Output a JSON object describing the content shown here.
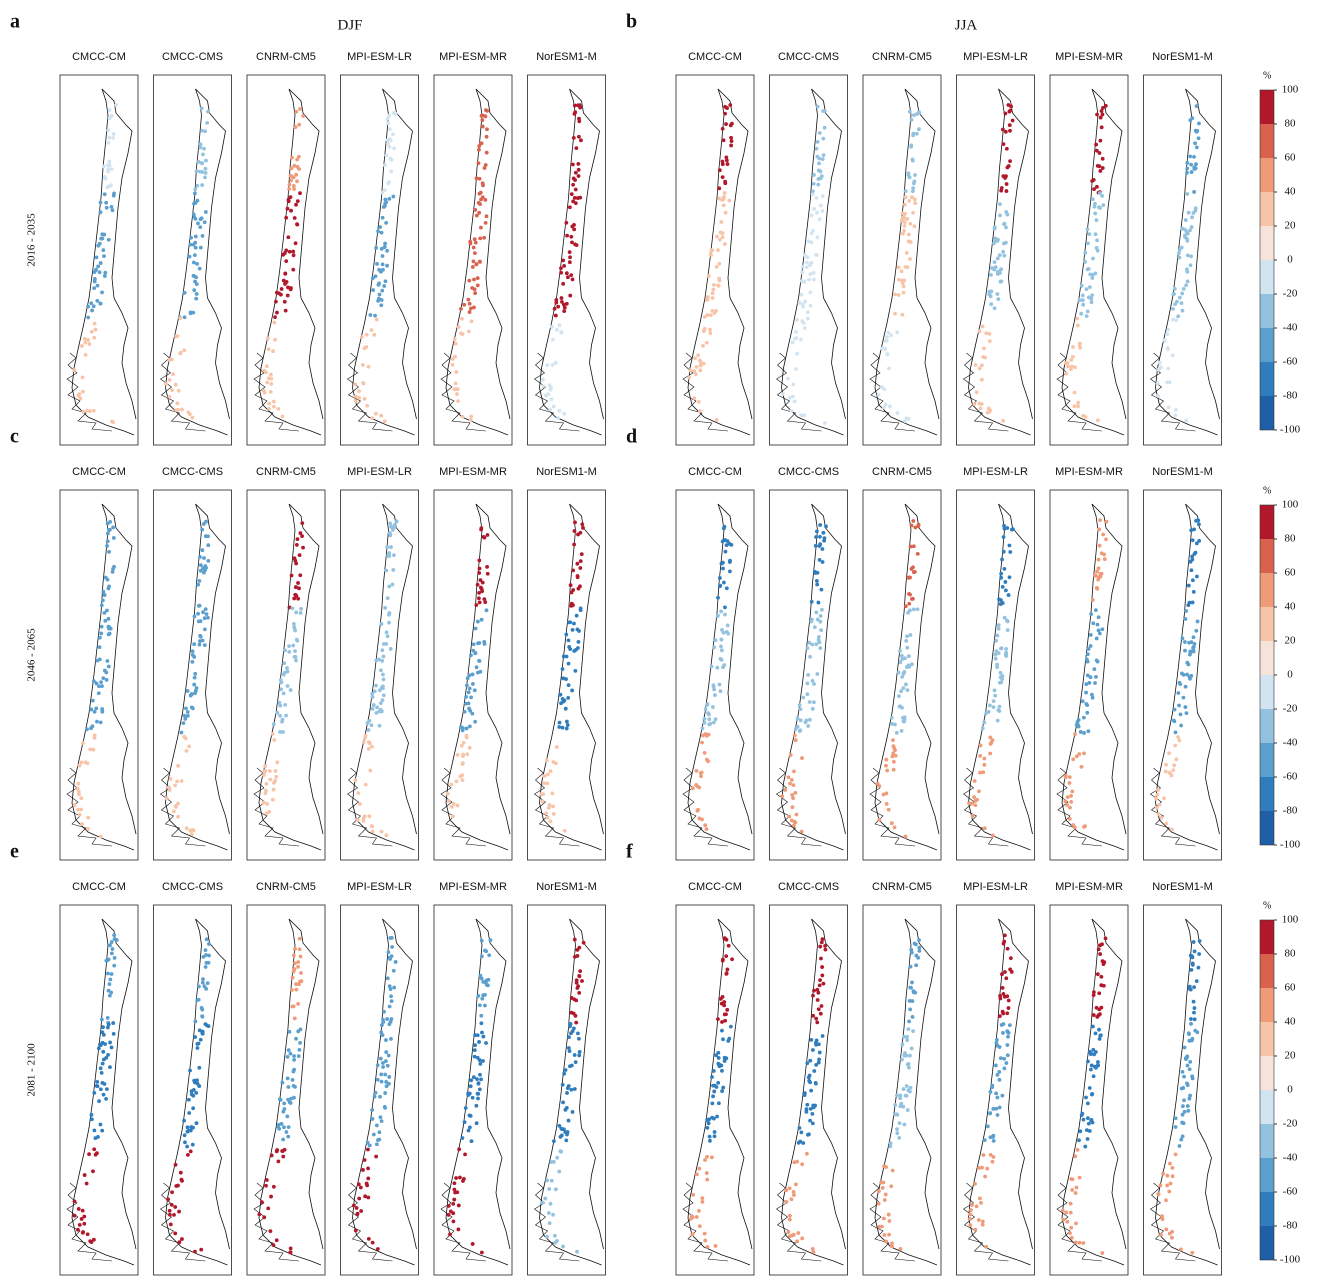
{
  "chart_data": {
    "type": "station-maps",
    "seasons": [
      "DJF",
      "JJA"
    ],
    "periods": [
      "2016 - 2035",
      "2046 - 2065",
      "2081 - 2100"
    ],
    "colorbar": {
      "label": "%",
      "ticks": [
        -100,
        -80,
        -60,
        -40,
        -20,
        0,
        20,
        40,
        60,
        80,
        100
      ],
      "colors": [
        "#1f5fa8",
        "#2f7dbd",
        "#5b9fcf",
        "#93c2e0",
        "#d3e4f1",
        "#f7e3da",
        "#f8c4a8",
        "#ef9a78",
        "#d9624f",
        "#b2182b"
      ]
    },
    "panels": [
      {
        "letter": "a",
        "models": [
          {
            "name": "CMCC-CM",
            "values": [
              -20,
              -60,
              20
            ]
          },
          {
            "name": "CMCC-CMS",
            "values": [
              -40,
              -60,
              20
            ]
          },
          {
            "name": "CNRM-CM5",
            "values": [
              40,
              80,
              20
            ]
          },
          {
            "name": "MPI-ESM-LR",
            "values": [
              -20,
              -60,
              20
            ]
          },
          {
            "name": "MPI-ESM-MR",
            "values": [
              60,
              60,
              20
            ]
          },
          {
            "name": "NorESM1-M",
            "values": [
              80,
              80,
              -20
            ]
          }
        ]
      },
      {
        "letter": "b",
        "models": [
          {
            "name": "CMCC-CM",
            "values": [
              80,
              20,
              20
            ]
          },
          {
            "name": "CMCC-CMS",
            "values": [
              -40,
              -20,
              -20
            ]
          },
          {
            "name": "CNRM-CM5",
            "values": [
              -40,
              20,
              -20
            ]
          },
          {
            "name": "MPI-ESM-LR",
            "values": [
              80,
              -40,
              20
            ]
          },
          {
            "name": "MPI-ESM-MR",
            "values": [
              80,
              -40,
              20
            ]
          },
          {
            "name": "NorESM1-M",
            "values": [
              -60,
              -40,
              -20
            ]
          }
        ]
      },
      {
        "letter": "c",
        "models": [
          {
            "name": "CMCC-CM",
            "values": [
              -60,
              -60,
              20
            ]
          },
          {
            "name": "CMCC-CMS",
            "values": [
              -60,
              -60,
              20
            ]
          },
          {
            "name": "CNRM-CM5",
            "values": [
              80,
              -40,
              20
            ]
          },
          {
            "name": "MPI-ESM-LR",
            "values": [
              -40,
              -40,
              20
            ]
          },
          {
            "name": "MPI-ESM-MR",
            "values": [
              80,
              -60,
              20
            ]
          },
          {
            "name": "NorESM1-M",
            "values": [
              80,
              -80,
              20
            ]
          }
        ]
      },
      {
        "letter": "d",
        "models": [
          {
            "name": "CMCC-CM",
            "values": [
              -80,
              -40,
              40
            ]
          },
          {
            "name": "CMCC-CMS",
            "values": [
              -80,
              -40,
              40
            ]
          },
          {
            "name": "CNRM-CM5",
            "values": [
              60,
              -40,
              40
            ]
          },
          {
            "name": "MPI-ESM-LR",
            "values": [
              -80,
              -40,
              40
            ]
          },
          {
            "name": "MPI-ESM-MR",
            "values": [
              40,
              -60,
              40
            ]
          },
          {
            "name": "NorESM1-M",
            "values": [
              -80,
              -60,
              20
            ]
          }
        ]
      },
      {
        "letter": "e",
        "models": [
          {
            "name": "CMCC-CM",
            "values": [
              -60,
              -80,
              80
            ]
          },
          {
            "name": "CMCC-CMS",
            "values": [
              -60,
              -80,
              80
            ]
          },
          {
            "name": "CNRM-CM5",
            "values": [
              40,
              -60,
              80
            ]
          },
          {
            "name": "MPI-ESM-LR",
            "values": [
              -60,
              -60,
              80
            ]
          },
          {
            "name": "MPI-ESM-MR",
            "values": [
              -60,
              -80,
              80
            ]
          },
          {
            "name": "NorESM1-M",
            "values": [
              80,
              -80,
              -40
            ]
          }
        ]
      },
      {
        "letter": "f",
        "models": [
          {
            "name": "CMCC-CM",
            "values": [
              100,
              -80,
              40
            ]
          },
          {
            "name": "CMCC-CMS",
            "values": [
              80,
              -80,
              40
            ]
          },
          {
            "name": "CNRM-CM5",
            "values": [
              -60,
              -40,
              40
            ]
          },
          {
            "name": "MPI-ESM-LR",
            "values": [
              80,
              -60,
              40
            ]
          },
          {
            "name": "MPI-ESM-MR",
            "values": [
              100,
              -80,
              40
            ]
          },
          {
            "name": "NorESM1-M",
            "values": [
              -80,
              -60,
              40
            ]
          }
        ]
      }
    ]
  }
}
